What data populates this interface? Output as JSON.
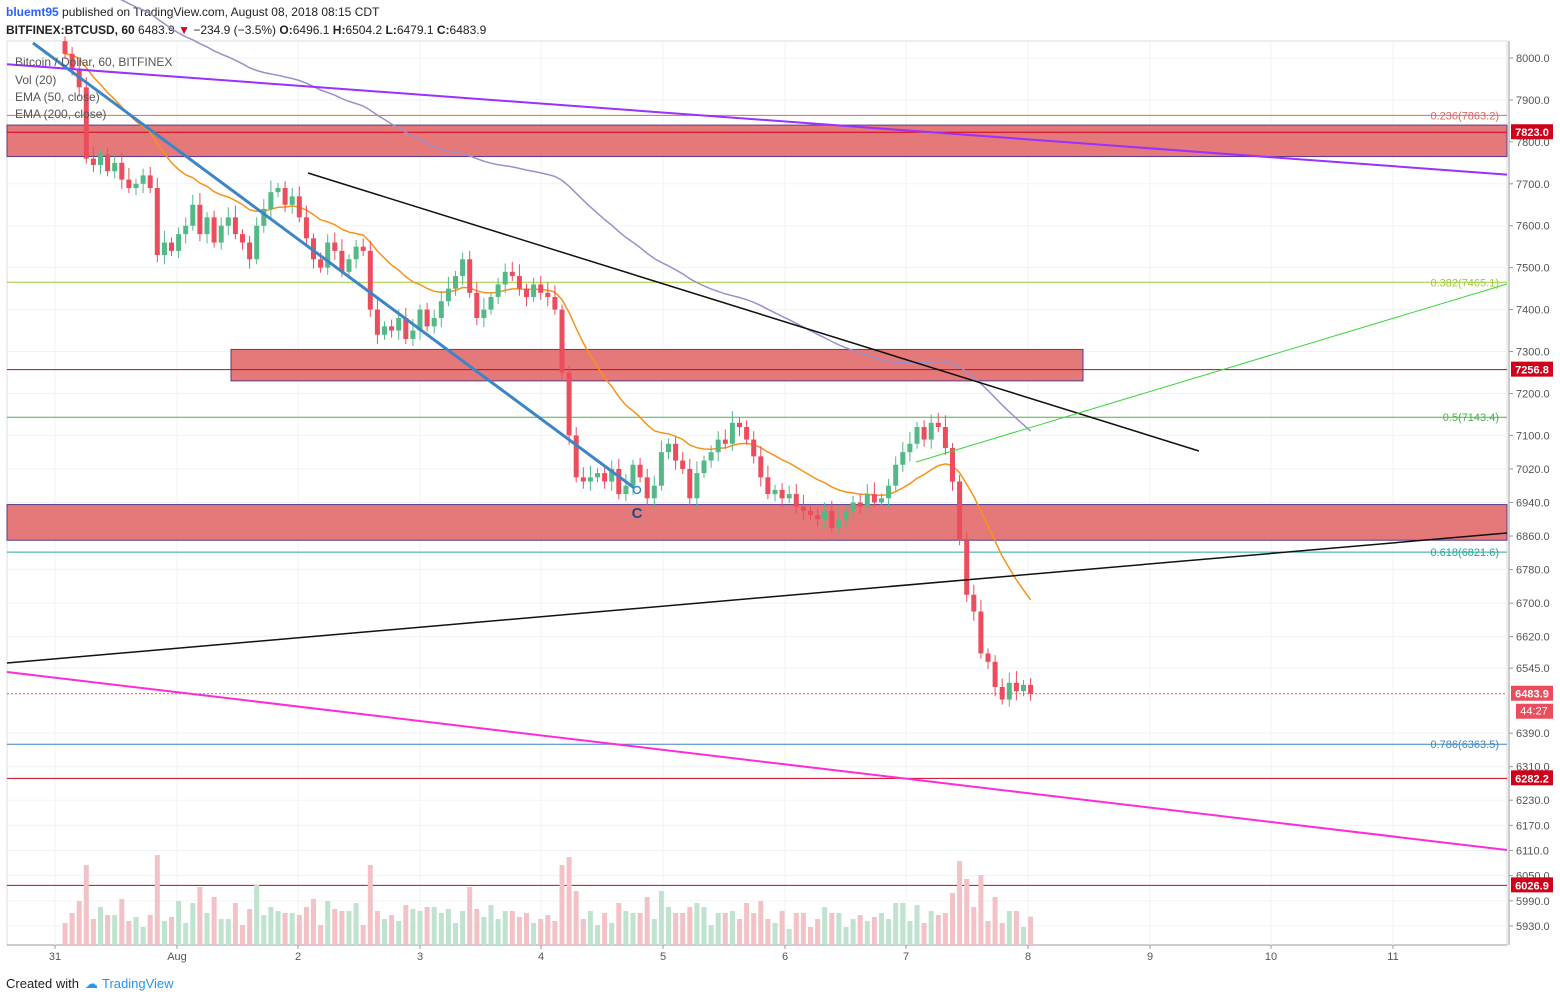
{
  "header": {
    "user": "bluemt95",
    "published": "published on TradingView.com, August 08, 2018 08:15 CDT"
  },
  "quote": {
    "symbol": "BITFINEX:BTCUSD, 60",
    "last": "6483.9",
    "change": "−234.9 (−3.5%)",
    "open": "6496.1",
    "high": "6504.2",
    "low": "6479.1",
    "close": "6483.9"
  },
  "legend": {
    "title": "Bitcoin / Dollar, 60, BITFINEX",
    "vol": "Vol (20)",
    "ema50": "EMA (50, close)",
    "ema200": "EMA (200, close)"
  },
  "footer": {
    "created": "Created with",
    "brand": "TradingView"
  },
  "colors": {
    "up": "#53b987",
    "down": "#eb4d5c",
    "ema50": "#f7931a",
    "ema200": "#9c8fc9",
    "zone": "#e06060",
    "resistance": "#d0021b",
    "purple_trend": "#9b30ff",
    "magenta_trend": "#ff2ad8",
    "blue_trend": "#3d85c6"
  },
  "chart_data": {
    "type": "candlestick",
    "symbol": "BTCUSD",
    "ylim": [
      5900,
      8040
    ],
    "y_ticks": [
      8000.0,
      7900.0,
      7800.0,
      7700.0,
      7600.0,
      7500.0,
      7400.0,
      7300.0,
      7200.0,
      7100.0,
      7020.0,
      6940.0,
      6860.0,
      6780.0,
      6700.0,
      6620.0,
      6545.0,
      6390.0,
      6310.0,
      6230.0,
      6170.0,
      6110.0,
      6050.0,
      5990.0,
      5930.0
    ],
    "x_ticks": [
      "31",
      "Aug",
      "2",
      "3",
      "4",
      "5",
      "6",
      "7",
      "8",
      "9",
      "10",
      "11"
    ],
    "price_labels": [
      {
        "value": 7823.0,
        "text": "7823.0",
        "color": "#d0021b"
      },
      {
        "value": 7256.8,
        "text": "7256.8",
        "color": "#d0021b"
      },
      {
        "value": 6483.9,
        "text": "6483.9",
        "color": "#eb4d5c"
      },
      {
        "value": 6282.2,
        "text": "6282.2",
        "color": "#d0021b"
      },
      {
        "value": 6026.9,
        "text": "6026.9",
        "color": "#d0021b"
      }
    ],
    "countdown": "44:27",
    "fib_levels": [
      {
        "ratio": "0.236",
        "value": 7863.2,
        "text": "0.236(7863.2)",
        "color": "#e06666"
      },
      {
        "ratio": "0.382",
        "value": 7465.1,
        "text": "0.382(7465.1)",
        "color": "#9acd32"
      },
      {
        "ratio": "0.5",
        "value": 7143.4,
        "text": "0.5(7143.4)",
        "color": "#4caf50"
      },
      {
        "ratio": "0.618",
        "value": 6821.6,
        "text": "0.618(6821.6)",
        "color": "#26a69a"
      },
      {
        "ratio": "0.786",
        "value": 6363.5,
        "text": "0.786(6363.5)",
        "color": "#3d85c6"
      }
    ],
    "horizontal_lines": [
      7823.0,
      7256.8,
      6282.2,
      6026.9
    ],
    "zones": [
      {
        "from": 7765,
        "to": 7840
      },
      {
        "from": 7230,
        "to": 7305
      },
      {
        "from": 6850,
        "to": 6935
      }
    ],
    "annotation": "C",
    "closes": [
      8010,
      7975,
      7930,
      7760,
      7745,
      7770,
      7730,
      7750,
      7710,
      7690,
      7700,
      7720,
      7690,
      7530,
      7560,
      7540,
      7580,
      7600,
      7650,
      7580,
      7620,
      7560,
      7600,
      7620,
      7580,
      7560,
      7520,
      7600,
      7640,
      7680,
      7690,
      7650,
      7670,
      7620,
      7570,
      7520,
      7500,
      7560,
      7540,
      7490,
      7520,
      7550,
      7540,
      7400,
      7340,
      7360,
      7350,
      7380,
      7330,
      7350,
      7400,
      7360,
      7380,
      7420,
      7450,
      7480,
      7520,
      7440,
      7380,
      7400,
      7430,
      7460,
      7490,
      7480,
      7450,
      7430,
      7460,
      7440,
      7430,
      7400,
      7250,
      7100,
      7000,
      6990,
      7000,
      7010,
      6990,
      7020,
      6960,
      6980,
      7030,
      7000,
      6950,
      6980,
      7060,
      7080,
      7040,
      7020,
      6950,
      7010,
      7040,
      7060,
      7090,
      7080,
      7130,
      7120,
      7090,
      7050,
      7000,
      6960,
      6970,
      6950,
      6960,
      6930,
      6920,
      6910,
      6900,
      6920,
      6880,
      6900,
      6920,
      6940,
      6930,
      6960,
      6940,
      6950,
      6980,
      7030,
      7060,
      7080,
      7120,
      7090,
      7130,
      7120,
      7070,
      6990,
      6850,
      6720,
      6680,
      6580,
      6560,
      6500,
      6470,
      6510,
      6490,
      6505,
      6483.9
    ]
  }
}
